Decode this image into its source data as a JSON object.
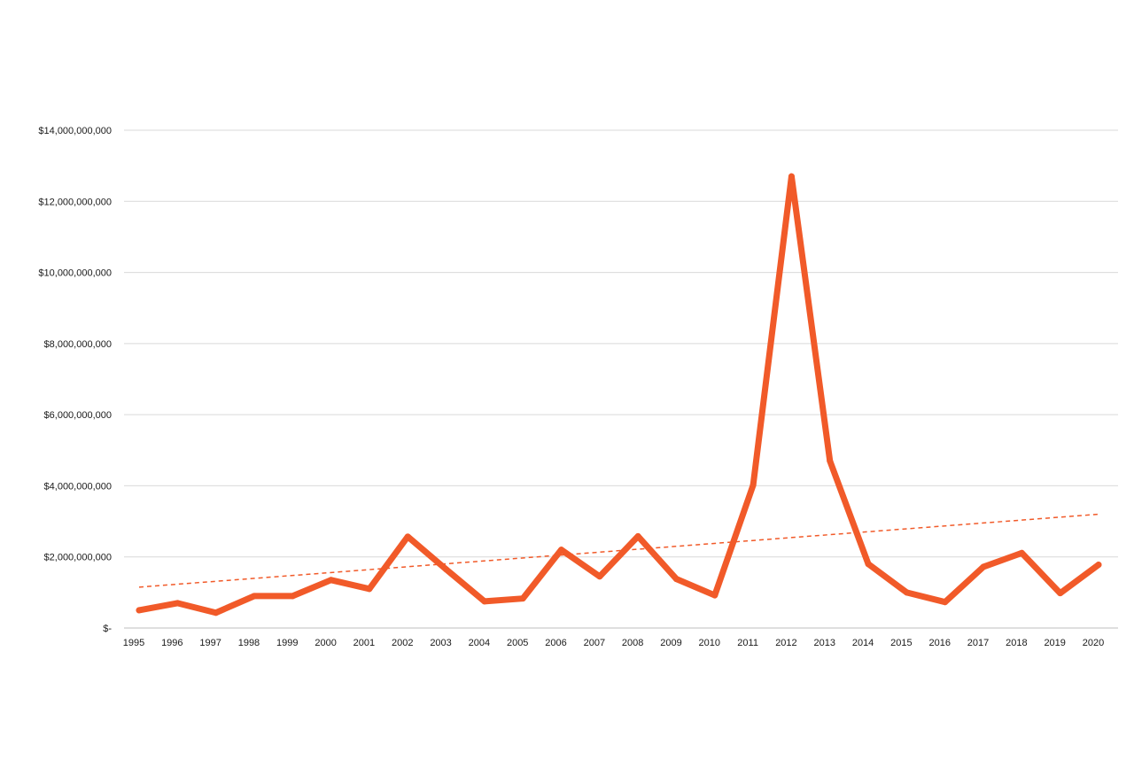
{
  "chart_data": {
    "type": "line",
    "title": "",
    "xlabel": "",
    "ylabel": "",
    "categories": [
      "1995",
      "1996",
      "1997",
      "1998",
      "1999",
      "2000",
      "2001",
      "2002",
      "2003",
      "2004",
      "2005",
      "2006",
      "2007",
      "2008",
      "2009",
      "2010",
      "2011",
      "2012",
      "2013",
      "2014",
      "2015",
      "2016",
      "2017",
      "2018",
      "2019",
      "2020"
    ],
    "series": [
      {
        "values": [
          500000000,
          700000000,
          430000000,
          900000000,
          900000000,
          1350000000,
          1100000000,
          2570000000,
          1650000000,
          750000000,
          830000000,
          2200000000,
          1450000000,
          2580000000,
          1380000000,
          920000000,
          4020000000,
          12700000000,
          4700000000,
          1800000000,
          1000000000,
          730000000,
          1720000000,
          2110000000,
          980000000,
          1780000000
        ],
        "color": "#F15A29"
      }
    ],
    "trendline": {
      "style": "dashed",
      "color": "#F15A29",
      "start_value": 1150000000,
      "end_value": 3200000000
    },
    "ylim": [
      0,
      14000000000
    ],
    "ytick_values": [
      0,
      2000000000,
      4000000000,
      6000000000,
      8000000000,
      10000000000,
      12000000000,
      14000000000
    ],
    "ytick_labels": [
      "$-",
      "$2,000,000,000",
      "$4,000,000,000",
      "$6,000,000,000",
      "$8,000,000,000",
      "$10,000,000,000",
      "$12,000,000,000",
      "$14,000,000,000"
    ],
    "grid": true,
    "legend": "none",
    "gridline_color": "#d9d9d9",
    "axis_color": "#bfbfbf"
  }
}
